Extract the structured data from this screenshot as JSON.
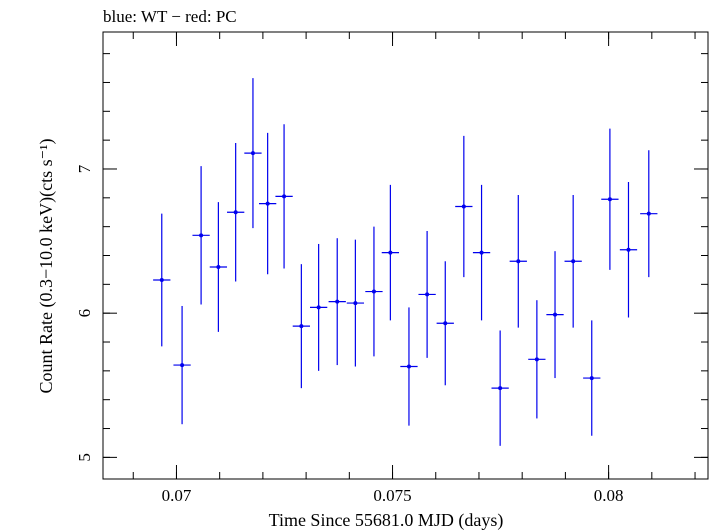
{
  "chart_data": {
    "type": "scatter",
    "title": "blue: WT − red: PC",
    "xlabel": "Time Since 55681.0 MJD (days)",
    "ylabel": "Count Rate (0.3−10.0 keV)(cts s⁻¹)",
    "xlim": [
      0.0683,
      0.0823
    ],
    "ylim": [
      4.85,
      7.95
    ],
    "x_ticks": [
      {
        "value": 0.07,
        "label": "0.07"
      },
      {
        "value": 0.075,
        "label": "0.075"
      },
      {
        "value": 0.08,
        "label": "0.08"
      }
    ],
    "y_ticks": [
      {
        "value": 5,
        "label": "5"
      },
      {
        "value": 6,
        "label": "6"
      },
      {
        "value": 7,
        "label": "7"
      }
    ],
    "x_minor_step": 0.001,
    "y_minor_step": 0.2,
    "grid": false,
    "series": [
      {
        "color": "#0000ee",
        "points": [
          {
            "x": 0.06966,
            "xerr": 0.0002,
            "y": 6.23,
            "yerr": 0.46
          },
          {
            "x": 0.07013,
            "xerr": 0.0002,
            "y": 5.64,
            "yerr": 0.41
          },
          {
            "x": 0.07057,
            "xerr": 0.0002,
            "y": 6.54,
            "yerr": 0.48
          },
          {
            "x": 0.07097,
            "xerr": 0.0002,
            "y": 6.32,
            "yerr": 0.45
          },
          {
            "x": 0.07137,
            "xerr": 0.0002,
            "y": 6.7,
            "yerr": 0.48
          },
          {
            "x": 0.07177,
            "xerr": 0.0002,
            "y": 7.11,
            "yerr": 0.52
          },
          {
            "x": 0.07211,
            "xerr": 0.0002,
            "y": 6.76,
            "yerr": 0.49
          },
          {
            "x": 0.07249,
            "xerr": 0.0002,
            "y": 6.81,
            "yerr": 0.5
          },
          {
            "x": 0.07289,
            "xerr": 0.0002,
            "y": 5.91,
            "yerr": 0.43
          },
          {
            "x": 0.07329,
            "xerr": 0.0002,
            "y": 6.04,
            "yerr": 0.44
          },
          {
            "x": 0.07372,
            "xerr": 0.0002,
            "y": 6.08,
            "yerr": 0.44
          },
          {
            "x": 0.07414,
            "xerr": 0.0002,
            "y": 6.07,
            "yerr": 0.44
          },
          {
            "x": 0.07457,
            "xerr": 0.0002,
            "y": 6.15,
            "yerr": 0.45
          },
          {
            "x": 0.07495,
            "xerr": 0.0002,
            "y": 6.42,
            "yerr": 0.47
          },
          {
            "x": 0.07538,
            "xerr": 0.0002,
            "y": 5.63,
            "yerr": 0.41
          },
          {
            "x": 0.0758,
            "xerr": 0.0002,
            "y": 6.13,
            "yerr": 0.44
          },
          {
            "x": 0.07622,
            "xerr": 0.0002,
            "y": 5.93,
            "yerr": 0.43
          },
          {
            "x": 0.07665,
            "xerr": 0.0002,
            "y": 6.74,
            "yerr": 0.49
          },
          {
            "x": 0.07706,
            "xerr": 0.0002,
            "y": 6.42,
            "yerr": 0.47
          },
          {
            "x": 0.07749,
            "xerr": 0.0002,
            "y": 5.48,
            "yerr": 0.4
          },
          {
            "x": 0.07791,
            "xerr": 0.0002,
            "y": 6.36,
            "yerr": 0.46
          },
          {
            "x": 0.07834,
            "xerr": 0.0002,
            "y": 5.68,
            "yerr": 0.41
          },
          {
            "x": 0.07876,
            "xerr": 0.0002,
            "y": 5.99,
            "yerr": 0.44
          },
          {
            "x": 0.07918,
            "xerr": 0.0002,
            "y": 6.36,
            "yerr": 0.46
          },
          {
            "x": 0.07961,
            "xerr": 0.0002,
            "y": 5.55,
            "yerr": 0.4
          },
          {
            "x": 0.08003,
            "xerr": 0.0002,
            "y": 6.79,
            "yerr": 0.49
          },
          {
            "x": 0.08046,
            "xerr": 0.0002,
            "y": 6.44,
            "yerr": 0.47
          },
          {
            "x": 0.08093,
            "xerr": 0.0002,
            "y": 6.69,
            "yerr": 0.44
          }
        ]
      }
    ]
  }
}
